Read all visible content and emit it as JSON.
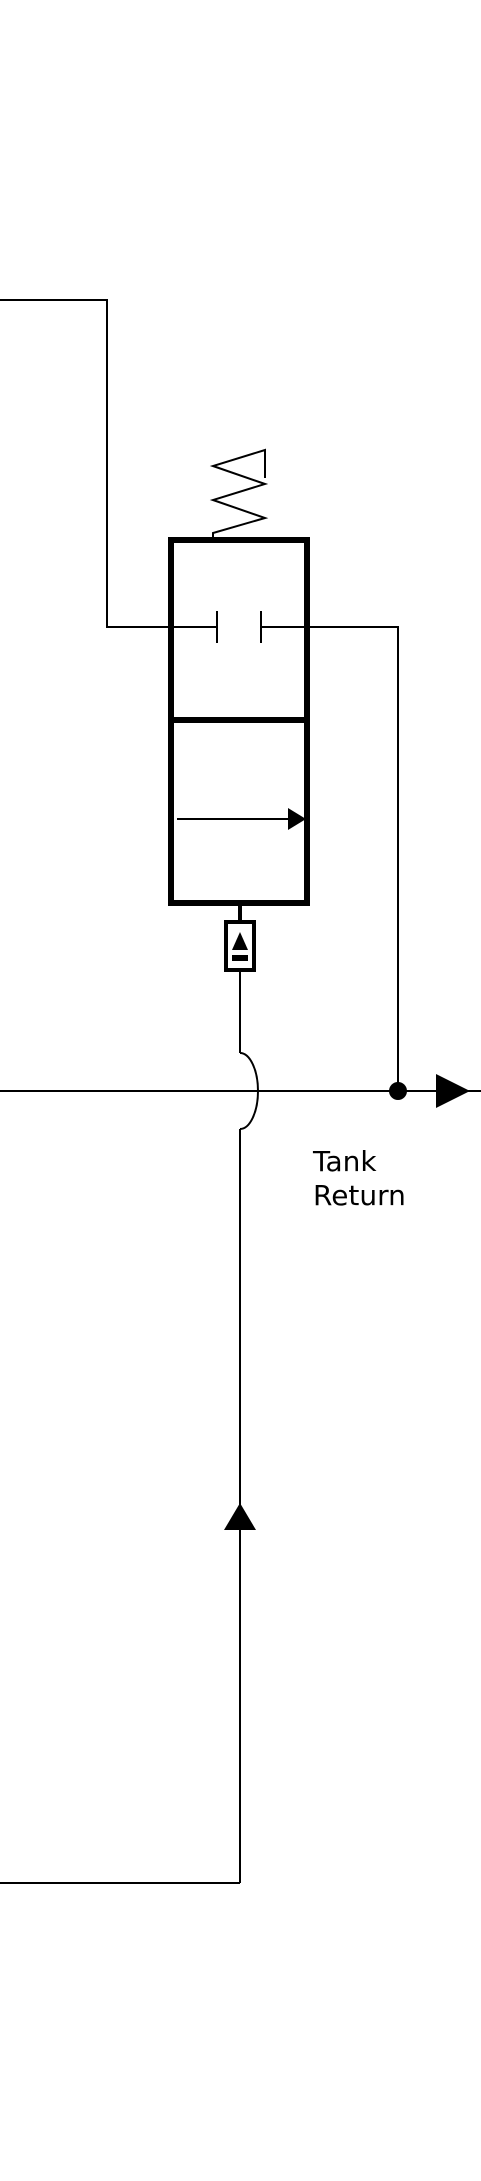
{
  "diagram": {
    "labels": {
      "tank_line1": "Tank",
      "tank_line2": "Return"
    }
  },
  "colors": {
    "line": "#000000",
    "background": "#ffffff"
  }
}
